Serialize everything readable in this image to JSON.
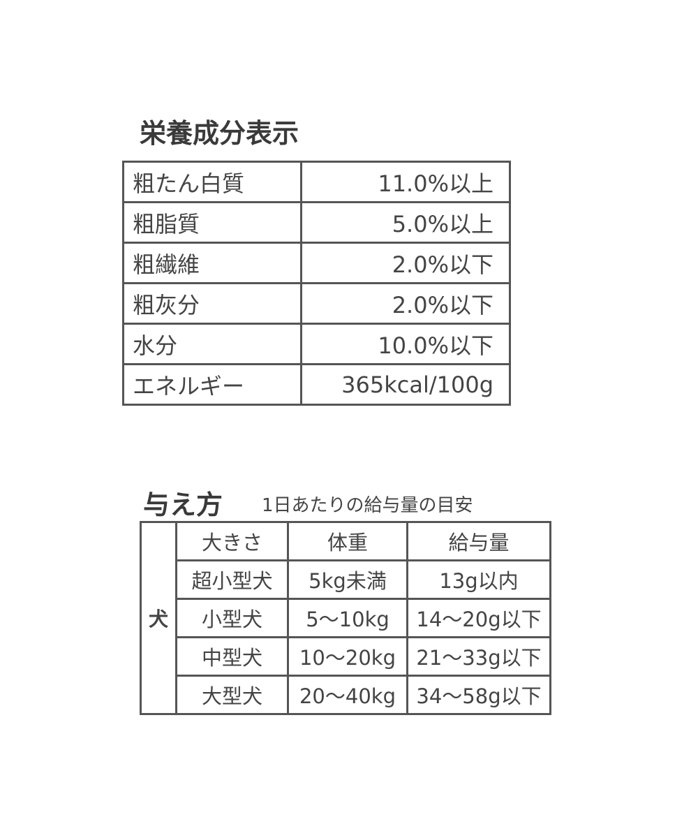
{
  "nutrition": {
    "title": "栄養成分表示",
    "rows": [
      {
        "label": "粗たん白質",
        "value": "11.0%以上"
      },
      {
        "label": "粗脂質",
        "value": "5.0%以上"
      },
      {
        "label": "粗繊維",
        "value": "2.0%以下"
      },
      {
        "label": "粗灰分",
        "value": "2.0%以下"
      },
      {
        "label": "水分",
        "value": "10.0%以下"
      },
      {
        "label": "エネルギー",
        "value": "365kcal/100g"
      }
    ]
  },
  "feeding": {
    "title": "与え方",
    "subtitle": "1日あたりの給与量の目安",
    "animal": "犬",
    "headers": [
      "大きさ",
      "体重",
      "給与量"
    ],
    "rows": [
      [
        "超小型犬",
        "5kg未満",
        "13g以内"
      ],
      [
        "小型犬",
        "5〜10kg",
        "14〜20g以下"
      ],
      [
        "中型犬",
        "10〜20kg",
        "21〜33g以下"
      ],
      [
        "大型犬",
        "20〜40kg",
        "34〜58g以下"
      ]
    ]
  }
}
